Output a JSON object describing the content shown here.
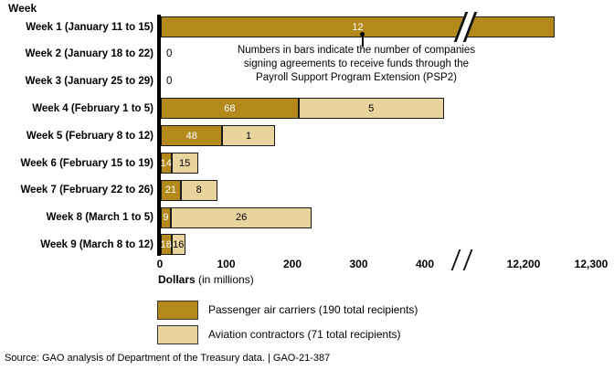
{
  "page": {
    "y_axis_header": "Week"
  },
  "annotation": {
    "lines": [
      "Numbers in bars indicate the number of companies",
      "signing agreements to receive funds through the",
      "Payroll Support Program Extension (PSP2)"
    ]
  },
  "axis_label": {
    "bold": "Dollars",
    "rest": " (in millions)"
  },
  "legend": {
    "items": [
      {
        "label": "Passenger air carriers (190 total recipients)"
      },
      {
        "label": "Aviation contractors (71 total recipients)"
      }
    ]
  },
  "source": "Source: GAO analysis of Department of the Treasury data.  |  GAO-21-387",
  "colors": {
    "carrier": "#B3891B",
    "contractor": "#E8D49C",
    "bar_border": "#1A1A1A"
  },
  "chart_data": {
    "type": "bar",
    "orientation": "horizontal",
    "title": "",
    "ylabel": "Week",
    "xlabel": "Dollars (in millions)",
    "grid": false,
    "legend_position": "bottom-left",
    "axis": {
      "ticks": [
        "0",
        "100",
        "200",
        "300",
        "400",
        "12,200",
        "12,300"
      ],
      "break": {
        "after": 400,
        "resume": 12200
      }
    },
    "series": [
      {
        "name": "Passenger air carriers",
        "total_recipients": 190
      },
      {
        "name": "Aviation contractors",
        "total_recipients": 71
      }
    ],
    "rows": [
      {
        "label": "Week 1 (January 11 to 15)",
        "carrier_dollars_m": 12250,
        "carrier_companies": 12,
        "contractor_dollars_m": 0,
        "contractor_companies": 0,
        "broken_bar": true,
        "callout": true
      },
      {
        "label": "Week 2 (January 18 to 22)",
        "carrier_dollars_m": 0,
        "carrier_companies": 0,
        "contractor_dollars_m": 0,
        "contractor_companies": 0,
        "zero_label": "0"
      },
      {
        "label": "Week 3 (January 25 to 29)",
        "carrier_dollars_m": 0,
        "carrier_companies": 0,
        "contractor_dollars_m": 0,
        "contractor_companies": 0,
        "zero_label": "0"
      },
      {
        "label": "Week 4 (February 1 to 5)",
        "carrier_dollars_m": 208,
        "carrier_companies": 68,
        "contractor_dollars_m": 219,
        "contractor_companies": 5
      },
      {
        "label": "Week 5 (February 8 to 12)",
        "carrier_dollars_m": 93,
        "carrier_companies": 48,
        "contractor_dollars_m": 79,
        "contractor_companies": 1
      },
      {
        "label": "Week 6 (February 15 to 19)",
        "carrier_dollars_m": 16,
        "carrier_companies": 14,
        "contractor_dollars_m": 40,
        "contractor_companies": 15
      },
      {
        "label": "Week 7 (February 22 to 26)",
        "carrier_dollars_m": 30,
        "carrier_companies": 21,
        "contractor_dollars_m": 55,
        "contractor_companies": 8
      },
      {
        "label": "Week 8 (March 1 to 5)",
        "carrier_dollars_m": 15,
        "carrier_companies": 9,
        "contractor_dollars_m": 213,
        "contractor_companies": 26
      },
      {
        "label": "Week 9 (March 8 to 12)",
        "carrier_dollars_m": 16,
        "carrier_companies": 18,
        "contractor_dollars_m": 21,
        "contractor_companies": 16
      }
    ]
  }
}
